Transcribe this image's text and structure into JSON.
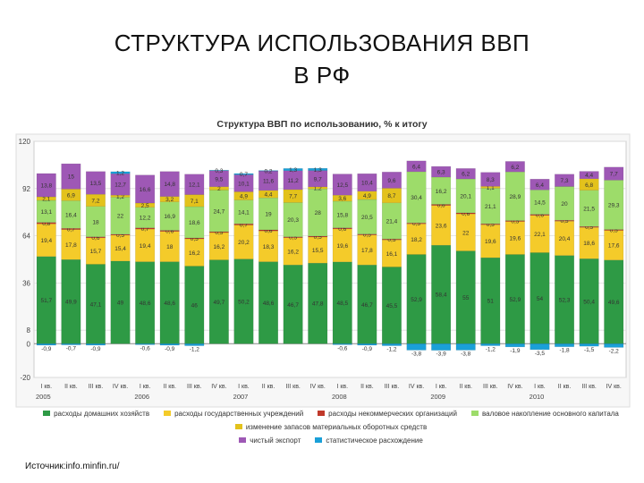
{
  "slide": {
    "title_line1": "СТРУКТУРА ИСПОЛЬЗОВАНИЯ ВВП",
    "title_line2": "В РФ",
    "source": "Источник:info.minfin.ru/"
  },
  "chart_data": {
    "type": "bar",
    "stacked": true,
    "title": "Структура ВВП по использованию, % к итогу",
    "xlabel": "",
    "ylabel": "",
    "ylim": [
      -20,
      120
    ],
    "yticks": [
      -20,
      0,
      8,
      36,
      64,
      92,
      120
    ],
    "grid": true,
    "legend_position": "bottom",
    "categories": [
      "I кв.",
      "II кв.",
      "III кв.",
      "IV кв.",
      "I кв.",
      "II кв.",
      "III кв.",
      "IV кв.",
      "I кв.",
      "II кв.",
      "III кв.",
      "IV кв.",
      "I кв.",
      "II кв.",
      "III кв.",
      "IV кв.",
      "I кв.",
      "II кв.",
      "III кв.",
      "IV кв.",
      "I кв.",
      "II кв.",
      "III кв.",
      "IV кв."
    ],
    "years": [
      {
        "label": "2005",
        "start": 0
      },
      {
        "label": "2006",
        "start": 4
      },
      {
        "label": "2007",
        "start": 8
      },
      {
        "label": "2008",
        "start": 12
      },
      {
        "label": "2009",
        "start": 16
      },
      {
        "label": "2010",
        "start": 20
      }
    ],
    "series": [
      {
        "name": "расходы домашних хозяйств",
        "color": "#2e9a45",
        "values": [
          51.7,
          49.9,
          47.1,
          49,
          48.6,
          48.6,
          46,
          49.7,
          50.2,
          48.6,
          46.7,
          47.8,
          48.5,
          46.7,
          45.5,
          52.9,
          58.4,
          55,
          51,
          52.9,
          54,
          52.3,
          50.4,
          49.6
        ]
      },
      {
        "name": "расходы государственных учреждений",
        "color": "#f4cb2a",
        "values": [
          19.4,
          17.8,
          15.7,
          15.4,
          19.4,
          18,
          16.2,
          16.2,
          20.2,
          18.3,
          16.2,
          15.5,
          19.6,
          17.8,
          16.1,
          18.2,
          23.6,
          22,
          19.6,
          19.6,
          22.1,
          20.4,
          18.6,
          17.6
        ]
      },
      {
        "name": "расходы некоммерческих организаций",
        "color": "#c0392b",
        "values": [
          0.8,
          0.7,
          0.6,
          0.5,
          0.7,
          0.6,
          0.5,
          0.5,
          0.7,
          0.6,
          0.5,
          0.5,
          0.6,
          0.5,
          0.5,
          0.5,
          0.6,
          0.6,
          0.5,
          0.5,
          0.6,
          0.5,
          0.5,
          0.5
        ]
      },
      {
        "name": "валовое накопление основного капитала",
        "color": "#9ddc6a",
        "values": [
          13.1,
          16.4,
          18,
          22,
          12.2,
          16.9,
          18.6,
          24.7,
          14.1,
          19,
          20.3,
          28,
          15.8,
          20.5,
          21.4,
          30.4,
          16.2,
          20.1,
          21.1,
          28.9,
          14.5,
          20,
          21.5,
          29.3
        ]
      },
      {
        "name": "изменение запасов материальных оборотных средств",
        "color": "#e3c21c",
        "values": [
          2.1,
          6.9,
          7.2,
          1.2,
          2.5,
          3.2,
          7.1,
          2,
          4.9,
          4.4,
          7.7,
          1.2,
          3.6,
          4.9,
          8.7,
          0,
          0,
          0,
          1.1,
          0,
          0,
          0,
          6.8,
          0
        ]
      },
      {
        "name": "чистый экспорт",
        "color": "#9e58b5",
        "values": [
          13.8,
          15,
          13.5,
          12.7,
          16.6,
          14.8,
          12.1,
          9.5,
          10.1,
          11.6,
          11.2,
          9.7,
          12.5,
          10.4,
          9.6,
          6.4,
          6.3,
          6.2,
          8.3,
          6.2,
          6.4,
          7.3,
          4.4,
          7.7
        ]
      },
      {
        "name": "статистическое расхождение",
        "color": "#1aa0d8",
        "values": [
          -0.9,
          -0.7,
          -0.9,
          1.2,
          -0.6,
          -0.9,
          -1.2,
          0.3,
          0.7,
          0.2,
          1.3,
          1.3,
          -0.6,
          -0.9,
          -1.2,
          -3.8,
          -3.9,
          -3.8,
          -1.2,
          -1.9,
          -3.5,
          -1.8,
          -1.5,
          -2.2
        ]
      }
    ],
    "legend_rows": [
      [
        0,
        1,
        2,
        3
      ],
      [
        4
      ],
      [
        5,
        6
      ]
    ]
  }
}
